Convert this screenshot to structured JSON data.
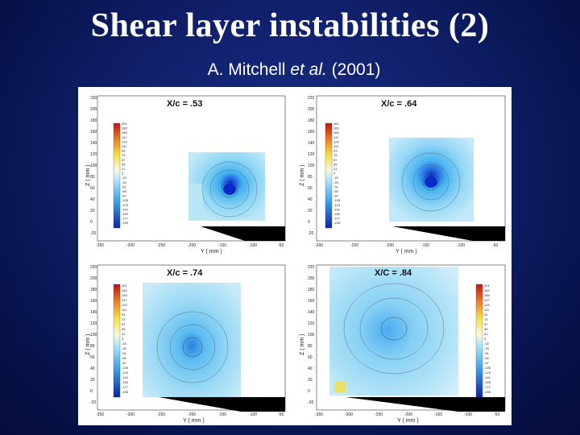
{
  "slide": {
    "title": "Shear layer instabilities (2)",
    "subtitle_main": "A. Mitchell ",
    "subtitle_italic": "et al.",
    "subtitle_year": " (2001)"
  },
  "panels": [
    {
      "id": "p1",
      "label": "X/c = .53",
      "xlabel": "Y ( mm )",
      "ylabel": "Z ( mm )",
      "xticks": [
        "-350",
        "-300",
        "-250",
        "-200",
        "-150",
        "-100",
        "-50"
      ],
      "yticks": [
        "220",
        "200",
        "180",
        "160",
        "140",
        "120",
        "100",
        "80",
        "60",
        "40",
        "20",
        "0",
        "-20"
      ],
      "colorbar": [
        "201",
        "183",
        "165",
        "147",
        "129",
        "111",
        "93",
        "75",
        "57",
        "39",
        "21",
        "3",
        "-15",
        "-33",
        "-51",
        "-69",
        "-87",
        "-105",
        "-123",
        "-141",
        "-159",
        "-177",
        "-195"
      ]
    },
    {
      "id": "p2",
      "label": "X/c = .64",
      "xlabel": "Y ( mm )",
      "ylabel": "Z ( mm )",
      "xticks": [
        "-300",
        "-250",
        "-200",
        "-150",
        "-100",
        "-50"
      ],
      "yticks": [
        "220",
        "200",
        "180",
        "160",
        "140",
        "120",
        "100",
        "80",
        "60",
        "40",
        "20",
        "0",
        "-20"
      ],
      "colorbar": [
        "201",
        "183",
        "165",
        "147",
        "129",
        "111",
        "93",
        "75",
        "57",
        "39",
        "21",
        "3",
        "-15",
        "-33",
        "-51",
        "-69",
        "-87",
        "-105",
        "-123",
        "-141",
        "-159",
        "-177",
        "-195"
      ]
    },
    {
      "id": "p3",
      "label": "X/c = .74",
      "xlabel": "Y ( mm )",
      "ylabel": "Z ( mm )",
      "xticks": [
        "-350",
        "-300",
        "-250",
        "-200",
        "-150",
        "-100",
        "-50"
      ],
      "yticks": [
        "220",
        "200",
        "180",
        "160",
        "140",
        "120",
        "100",
        "80",
        "60",
        "40",
        "20",
        "0",
        "-20"
      ],
      "colorbar": [
        "201",
        "183",
        "165",
        "147",
        "129",
        "111",
        "93",
        "75",
        "57",
        "39",
        "21",
        "3",
        "-15",
        "-33",
        "-51",
        "-69",
        "-87",
        "-105",
        "-123",
        "-141",
        "-159",
        "-177",
        "-195"
      ]
    },
    {
      "id": "p4",
      "label": "X/C = .84",
      "xlabel": "Y ( mm )",
      "ylabel": "Z ( mm )",
      "xticks": [
        "-350",
        "-300",
        "-250",
        "-200",
        "-150",
        "-100",
        "-50"
      ],
      "yticks": [
        "220",
        "200",
        "180",
        "160",
        "140",
        "120",
        "100",
        "80",
        "60",
        "40",
        "20",
        "0",
        "-20"
      ],
      "colorbar": [
        "201",
        "183",
        "165",
        "147",
        "129",
        "111",
        "93",
        "75",
        "57",
        "39",
        "21",
        "3",
        "-15",
        "-33",
        "-51",
        "-69",
        "-87",
        "-105",
        "-123",
        "-141",
        "-159",
        "-177",
        "-195"
      ]
    }
  ],
  "colors": {
    "background_dark": "#07124a",
    "background_mid": "#1b2f8a",
    "vortex_core": "#0a2ac8",
    "field_light": "#8fd6f5",
    "field_mid": "#3fb0ee"
  }
}
